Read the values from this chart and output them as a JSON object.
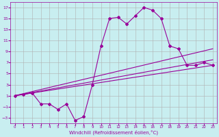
{
  "xlabel": "Windchill (Refroidissement éolien,°C)",
  "background_color": "#c8eef0",
  "line_color": "#990099",
  "grid_color": "#b0b0b0",
  "xlim": [
    -0.5,
    23.5
  ],
  "ylim": [
    -4,
    18
  ],
  "xticks": [
    0,
    1,
    2,
    3,
    4,
    5,
    6,
    7,
    8,
    9,
    10,
    11,
    12,
    13,
    14,
    15,
    16,
    17,
    18,
    19,
    20,
    21,
    22,
    23
  ],
  "yticks": [
    -3,
    -1,
    1,
    3,
    5,
    7,
    9,
    11,
    13,
    15,
    17
  ],
  "line_straight1": {
    "x": [
      0,
      23
    ],
    "y": [
      1.0,
      6.5
    ]
  },
  "line_straight2": {
    "x": [
      0,
      23
    ],
    "y": [
      1.0,
      7.5
    ]
  },
  "line_straight3": {
    "x": [
      0,
      23
    ],
    "y": [
      1.0,
      9.5
    ]
  },
  "line_main": {
    "x": [
      0,
      1,
      2,
      3,
      4,
      5,
      6,
      7,
      8,
      9,
      10,
      11,
      12,
      13,
      14,
      15,
      16,
      17,
      18,
      19,
      20,
      21,
      22,
      23
    ],
    "y": [
      1.0,
      1.2,
      1.5,
      -0.5,
      -0.5,
      -1.5,
      -0.5,
      -3.5,
      -2.8,
      3.0,
      10.0,
      15.0,
      15.2,
      14.0,
      15.5,
      17.0,
      16.5,
      15.0,
      10.0,
      9.5,
      6.5,
      6.5,
      7.0,
      6.5
    ]
  },
  "figsize": [
    3.2,
    2.0
  ],
  "dpi": 100
}
